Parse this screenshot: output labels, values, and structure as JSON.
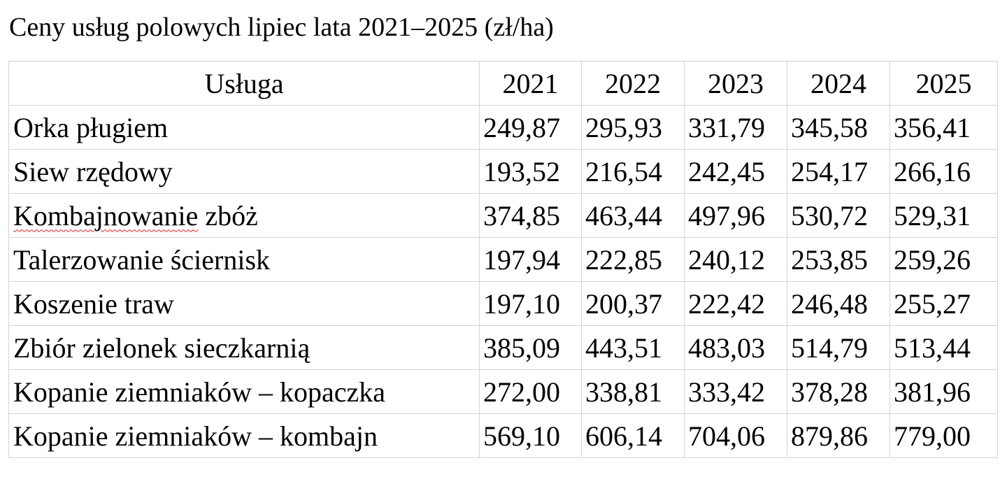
{
  "title": "Ceny usług polowych lipiec lata 2021–2025 (zł/ha)",
  "table": {
    "headers": [
      "Usługa",
      "2021",
      "2022",
      "2023",
      "2024",
      "2025"
    ],
    "rows": [
      {
        "service": "Orka pługiem",
        "values": [
          "249,87",
          "295,93",
          "331,79",
          "345,58",
          "356,41"
        ]
      },
      {
        "service": "Siew rzędowy",
        "values": [
          "193,52",
          "216,54",
          "242,45",
          "254,17",
          "266,16"
        ]
      },
      {
        "service_a": "Kombajnowanie",
        "service_b": " zbóż",
        "values": [
          "374,85",
          "463,44",
          "497,96",
          "530,72",
          "529,31"
        ]
      },
      {
        "service": "Talerzowanie ściernisk",
        "values": [
          "197,94",
          "222,85",
          "240,12",
          "253,85",
          "259,26"
        ]
      },
      {
        "service": "Koszenie traw",
        "values": [
          "197,10",
          "200,37",
          "222,42",
          "246,48",
          "255,27"
        ]
      },
      {
        "service": "Zbiór zielonek sieczkarnią",
        "values": [
          "385,09",
          "443,51",
          "483,03",
          "514,79",
          "513,44"
        ]
      },
      {
        "service": "Kopanie ziemniaków – kopaczka",
        "values": [
          "272,00",
          "338,81",
          "333,42",
          "378,28",
          "381,96"
        ]
      },
      {
        "service": "Kopanie ziemniaków – kombajn",
        "values": [
          "569,10",
          "606,14",
          "704,06",
          "879,86",
          "779,00"
        ]
      }
    ]
  }
}
